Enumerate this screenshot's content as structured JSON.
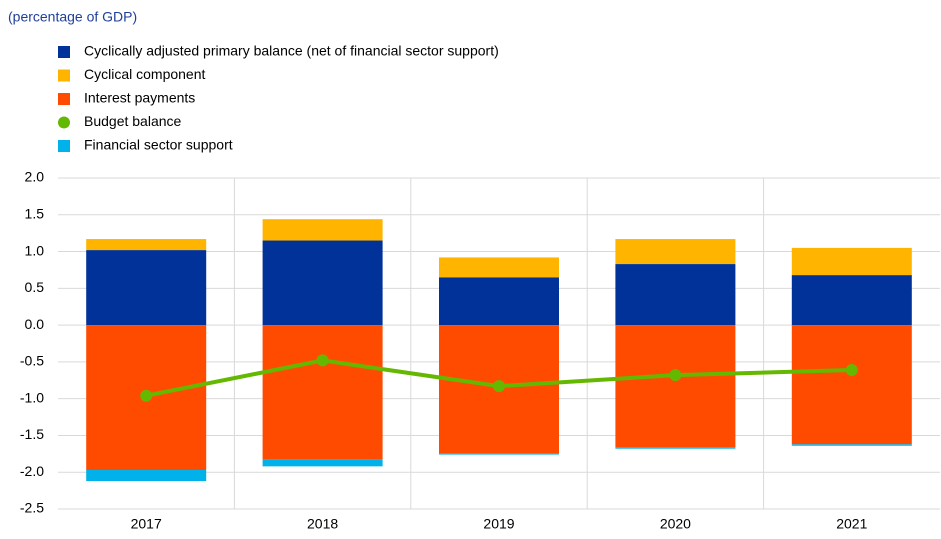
{
  "chart_data": {
    "type": "bar",
    "subtitle": "(percentage of GDP)",
    "categories": [
      "2017",
      "2018",
      "2019",
      "2020",
      "2021"
    ],
    "series": [
      {
        "name": "Cyclically adjusted primary balance (net of financial sector support)",
        "color": "#003299",
        "values": [
          1.02,
          1.15,
          0.65,
          0.83,
          0.68
        ]
      },
      {
        "name": "Cyclical component",
        "color": "#ffb400",
        "values": [
          0.15,
          0.29,
          0.27,
          0.34,
          0.37
        ]
      },
      {
        "name": "Interest payments",
        "color": "#ff4b00",
        "values": [
          -1.97,
          -1.83,
          -1.74,
          -1.66,
          -1.62
        ]
      },
      {
        "name": "Budget balance",
        "color": "#65b800",
        "type": "line",
        "values": [
          -0.96,
          -0.48,
          -0.83,
          -0.68,
          -0.61
        ]
      },
      {
        "name": "Financial sector support",
        "color": "#00b1ea",
        "values": [
          -0.15,
          -0.09,
          -0.02,
          -0.02,
          -0.02
        ]
      }
    ],
    "ylim": [
      -2.5,
      2.0
    ],
    "yticks": [
      {
        "value": -2.5,
        "label": "-2.5"
      },
      {
        "value": -2,
        "label": "-2.0"
      },
      {
        "value": -1.5,
        "label": "-1.5"
      },
      {
        "value": -1,
        "label": "-1.0"
      },
      {
        "value": -0.5,
        "label": "-0.5"
      },
      {
        "value": 0,
        "label": "0.0"
      },
      {
        "value": 0.5,
        "label": "0.5"
      },
      {
        "value": 1,
        "label": "1.0"
      },
      {
        "value": 1.5,
        "label": "1.5"
      },
      {
        "value": 2,
        "label": "2.0"
      }
    ],
    "grid": true
  }
}
